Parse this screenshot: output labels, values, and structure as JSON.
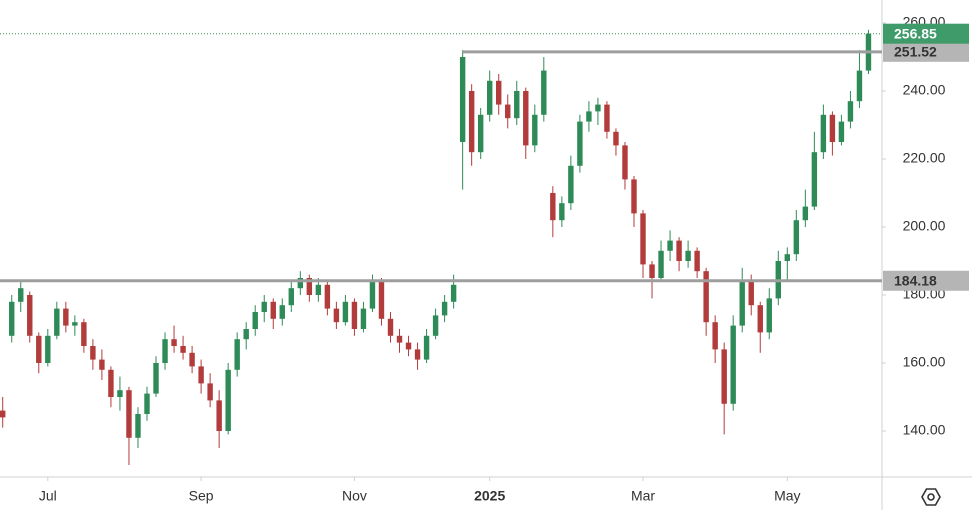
{
  "chart_data": {
    "type": "candlestick",
    "ohlc": [
      [
        146,
        150,
        141,
        144
      ],
      [
        168,
        180,
        166,
        178
      ],
      [
        178,
        184,
        175,
        182
      ],
      [
        180,
        181,
        166,
        168
      ],
      [
        168,
        169,
        157,
        160
      ],
      [
        160,
        170,
        159,
        168
      ],
      [
        168,
        178,
        167,
        176
      ],
      [
        176,
        178,
        169,
        171
      ],
      [
        171,
        174,
        168,
        172
      ],
      [
        172,
        173,
        163,
        165
      ],
      [
        165,
        167,
        158,
        161
      ],
      [
        161,
        164,
        155,
        158
      ],
      [
        158,
        159,
        147,
        150
      ],
      [
        150,
        156,
        146,
        152
      ],
      [
        152,
        153,
        130,
        138
      ],
      [
        138,
        147,
        135,
        145
      ],
      [
        145,
        153,
        143,
        151
      ],
      [
        151,
        162,
        150,
        160
      ],
      [
        160,
        169,
        158,
        167
      ],
      [
        167,
        171,
        163,
        165
      ],
      [
        165,
        168,
        161,
        163
      ],
      [
        163,
        165,
        157,
        159
      ],
      [
        159,
        161,
        151,
        154
      ],
      [
        154,
        157,
        147,
        149
      ],
      [
        149,
        152,
        135,
        140
      ],
      [
        140,
        160,
        139,
        158
      ],
      [
        158,
        169,
        156,
        167
      ],
      [
        167,
        172,
        164,
        170
      ],
      [
        170,
        177,
        168,
        175
      ],
      [
        175,
        180,
        172,
        178
      ],
      [
        178,
        179,
        170,
        173
      ],
      [
        173,
        179,
        171,
        177
      ],
      [
        177,
        184,
        175,
        182
      ],
      [
        182,
        187,
        180,
        185
      ],
      [
        185,
        186,
        178,
        180
      ],
      [
        180,
        185,
        178,
        183
      ],
      [
        183,
        184,
        174,
        176
      ],
      [
        176,
        178,
        170,
        172
      ],
      [
        172,
        180,
        171,
        178
      ],
      [
        178,
        179,
        168,
        170
      ],
      [
        170,
        178,
        169,
        176
      ],
      [
        176,
        186,
        175,
        184
      ],
      [
        184,
        185,
        171,
        173
      ],
      [
        173,
        175,
        166,
        168
      ],
      [
        168,
        170,
        163,
        166
      ],
      [
        166,
        168,
        162,
        164
      ],
      [
        164,
        166,
        158,
        161
      ],
      [
        161,
        170,
        160,
        168
      ],
      [
        168,
        176,
        167,
        174
      ],
      [
        174,
        180,
        172,
        178
      ],
      [
        178,
        186,
        176,
        183
      ],
      [
        225,
        252,
        211,
        250
      ],
      [
        240,
        242,
        218,
        222
      ],
      [
        222,
        235,
        220,
        233
      ],
      [
        233,
        246,
        231,
        243
      ],
      [
        243,
        245,
        233,
        236
      ],
      [
        236,
        239,
        229,
        232
      ],
      [
        232,
        243,
        230,
        240
      ],
      [
        240,
        241,
        220,
        224
      ],
      [
        224,
        236,
        222,
        233
      ],
      [
        233,
        250,
        231,
        246
      ],
      [
        210,
        212,
        197,
        202
      ],
      [
        202,
        209,
        200,
        207
      ],
      [
        207,
        221,
        205,
        218
      ],
      [
        218,
        233,
        216,
        231
      ],
      [
        231,
        237,
        228,
        234
      ],
      [
        234,
        238,
        230,
        236
      ],
      [
        236,
        237,
        226,
        228
      ],
      [
        228,
        229,
        221,
        224
      ],
      [
        224,
        225,
        211,
        214
      ],
      [
        214,
        215,
        200,
        204
      ],
      [
        204,
        205,
        185,
        189
      ],
      [
        189,
        190,
        179,
        185
      ],
      [
        185,
        196,
        184,
        193
      ],
      [
        193,
        199,
        190,
        196
      ],
      [
        196,
        197,
        187,
        190
      ],
      [
        190,
        196,
        188,
        193
      ],
      [
        193,
        194,
        185,
        187
      ],
      [
        187,
        188,
        168,
        172
      ],
      [
        172,
        174,
        160,
        164
      ],
      [
        164,
        166,
        139,
        148
      ],
      [
        148,
        174,
        146,
        171
      ],
      [
        171,
        188,
        169,
        184
      ],
      [
        184,
        186,
        174,
        177
      ],
      [
        177,
        178,
        163,
        169
      ],
      [
        169,
        182,
        167,
        179
      ],
      [
        179,
        193,
        177,
        190
      ],
      [
        190,
        194,
        184,
        192
      ],
      [
        192,
        205,
        190,
        202
      ],
      [
        202,
        211,
        200,
        206
      ],
      [
        206,
        228,
        205,
        222
      ],
      [
        222,
        236,
        220,
        233
      ],
      [
        233,
        234,
        221,
        225
      ],
      [
        225,
        233,
        224,
        231
      ],
      [
        231,
        240,
        229,
        237
      ],
      [
        237,
        252,
        235,
        246
      ],
      [
        246,
        258,
        245,
        256.85
      ]
    ],
    "up_color": "#2e8b57",
    "down_color": "#b23b3b",
    "xlim": [
      -0.3,
      97.5
    ],
    "xticks": [
      {
        "value": 5,
        "label": "Jul"
      },
      {
        "value": 22,
        "label": "Sep"
      },
      {
        "value": 39,
        "label": "Nov"
      },
      {
        "value": 54,
        "label": "2025"
      },
      {
        "value": 71,
        "label": "Mar"
      },
      {
        "value": 87,
        "label": "May"
      }
    ],
    "ylim": [
      126.47,
      266.76
    ],
    "yticks": [
      {
        "value": 140,
        "label": "140.00"
      },
      {
        "value": 160,
        "label": "160.00"
      },
      {
        "value": 180,
        "label": "180.00"
      },
      {
        "value": 200,
        "label": "200.00"
      },
      {
        "value": 220,
        "label": "220.00"
      },
      {
        "value": 240,
        "label": "240.00"
      },
      {
        "value": 260,
        "label": "260.00"
      }
    ],
    "levels": [
      {
        "price": 251.52,
        "from": 51
      },
      {
        "price": 184.18,
        "from": -0.3
      }
    ],
    "level_color": "#9e9e9e"
  }
}
